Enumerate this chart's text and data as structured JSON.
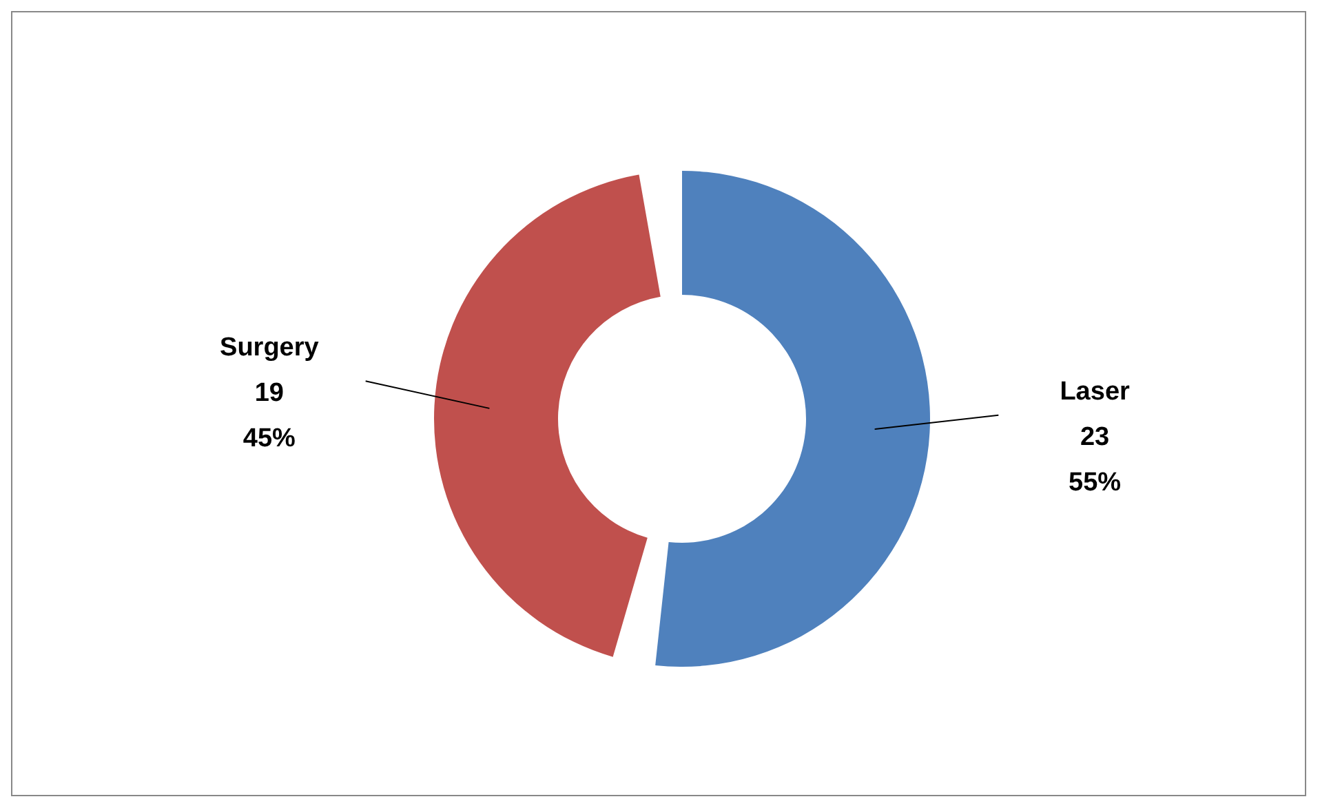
{
  "chart_data": {
    "type": "donut",
    "categories": [
      "Laser",
      "Surgery"
    ],
    "values": [
      23,
      19
    ],
    "colors": [
      "#4f81bd",
      "#c0504d"
    ],
    "value_labels": [
      "23\n55%",
      "19\n45%"
    ]
  }
}
